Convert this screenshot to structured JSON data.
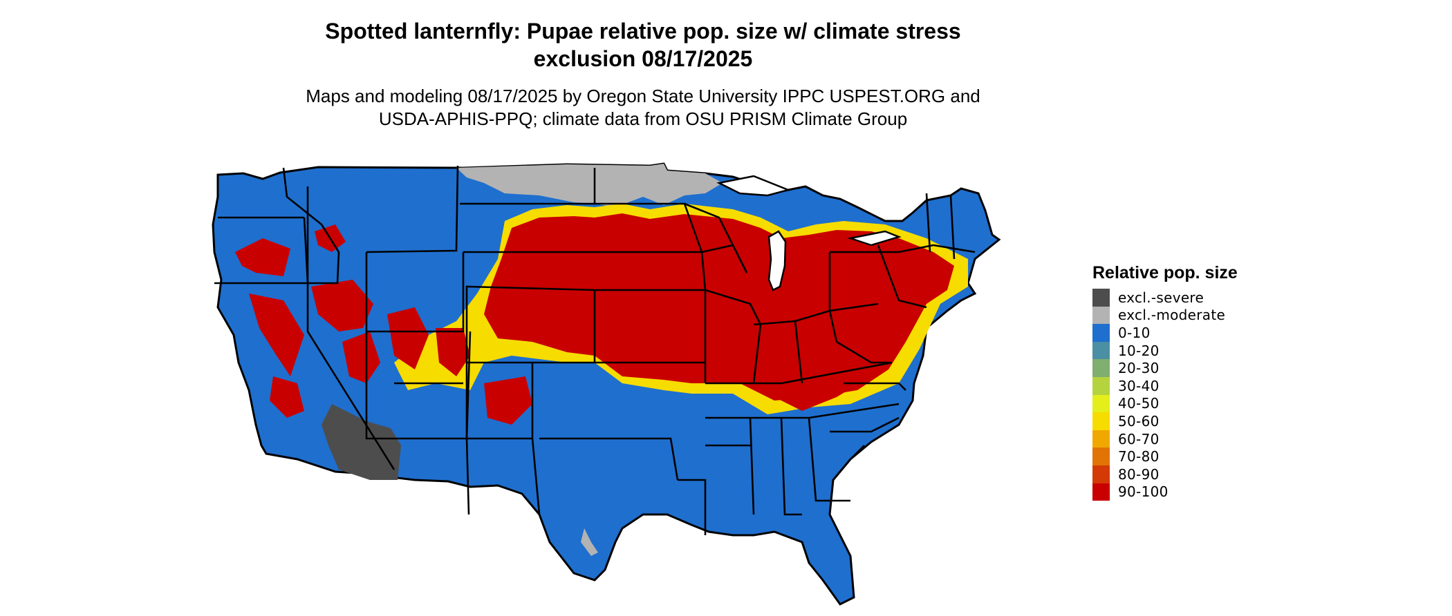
{
  "title": {
    "line1": "Spotted lanternfly: Pupae relative pop. size w/ climate stress",
    "line2": "exclusion 08/17/2025"
  },
  "subtitle": {
    "line1": "Maps and modeling 08/17/2025 by Oregon State University IPPC USPEST.ORG and",
    "line2": "USDA-APHIS-PPQ; climate data from OSU PRISM Climate Group"
  },
  "legend": {
    "title": "Relative pop. size",
    "items": [
      {
        "label": "excl.-severe",
        "color": "#4d4d4d"
      },
      {
        "label": "excl.-moderate",
        "color": "#b3b3b3"
      },
      {
        "label": "0-10",
        "color": "#1f6fce"
      },
      {
        "label": "10-20",
        "color": "#4a8fa3"
      },
      {
        "label": "20-30",
        "color": "#7fae6f"
      },
      {
        "label": "30-40",
        "color": "#b5d33f"
      },
      {
        "label": "40-50",
        "color": "#e3ee1b"
      },
      {
        "label": "50-60",
        "color": "#f7dc00"
      },
      {
        "label": "60-70",
        "color": "#f0a800"
      },
      {
        "label": "70-80",
        "color": "#e27406"
      },
      {
        "label": "80-90",
        "color": "#d43a05"
      },
      {
        "label": "90-100",
        "color": "#c90000"
      }
    ]
  },
  "map_colors": {
    "background": "#ffffff",
    "border": "#000000",
    "base": "#1f6fce",
    "high": "#c90000",
    "mid": "#f7dc00",
    "severe": "#4d4d4d",
    "moderate": "#b3b3b3"
  }
}
